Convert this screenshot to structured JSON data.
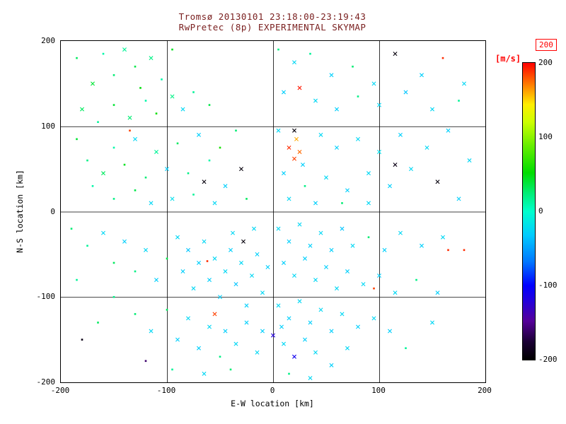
{
  "colors": {
    "title_text": "#7a2020",
    "unit_label": "#ff0000",
    "axis": "#000000",
    "background": "#ffffff"
  },
  "chart_data": {
    "type": "scatter",
    "title": "Tromsø 20130101 23:18:00-23:19:43",
    "subtitle": "RwPretec (8p) EXPERIMENTAL SKYMAP",
    "xlabel": "E-W location [km]",
    "ylabel": "N-S location [km]",
    "xlim": [
      -200,
      200
    ],
    "ylim": [
      -200,
      200
    ],
    "xticks": [
      -200,
      -100,
      0,
      100,
      200
    ],
    "yticks": [
      -200,
      -100,
      0,
      100,
      200
    ],
    "grid": true,
    "colorbar": {
      "label": "[m/s]",
      "boxed_max_label": "200",
      "ticks": [
        200,
        100,
        0,
        -100,
        -200
      ],
      "min": -200,
      "max": 200,
      "stops": [
        [
          0.0,
          "#000000"
        ],
        [
          0.06,
          "#1a0033"
        ],
        [
          0.13,
          "#550099"
        ],
        [
          0.2,
          "#2200dd"
        ],
        [
          0.25,
          "#0000ff"
        ],
        [
          0.33,
          "#0077ff"
        ],
        [
          0.42,
          "#00ccff"
        ],
        [
          0.5,
          "#00ffcc"
        ],
        [
          0.56,
          "#00ee77"
        ],
        [
          0.63,
          "#00dd00"
        ],
        [
          0.72,
          "#66ee00"
        ],
        [
          0.8,
          "#ccff00"
        ],
        [
          0.86,
          "#ffee00"
        ],
        [
          0.92,
          "#ff8800"
        ],
        [
          1.0,
          "#ff0000"
        ]
      ]
    },
    "point_format": [
      "x_km",
      "y_km",
      "velocity_ms",
      "marker(1=x,0=dot)"
    ],
    "points": [
      [
        -185,
        180,
        30,
        0
      ],
      [
        -170,
        150,
        40,
        1
      ],
      [
        -160,
        185,
        10,
        0
      ],
      [
        -150,
        160,
        25,
        0
      ],
      [
        -140,
        190,
        15,
        1
      ],
      [
        -130,
        170,
        35,
        0
      ],
      [
        -125,
        145,
        50,
        0
      ],
      [
        -115,
        180,
        20,
        1
      ],
      [
        -105,
        155,
        10,
        0
      ],
      [
        -95,
        190,
        45,
        0
      ],
      [
        -180,
        120,
        30,
        1
      ],
      [
        -165,
        105,
        15,
        0
      ],
      [
        -150,
        125,
        40,
        0
      ],
      [
        -135,
        110,
        25,
        1
      ],
      [
        -120,
        130,
        10,
        0
      ],
      [
        -110,
        115,
        55,
        0
      ],
      [
        -95,
        135,
        20,
        1
      ],
      [
        -85,
        120,
        -25,
        1
      ],
      [
        -75,
        140,
        15,
        0
      ],
      [
        -60,
        125,
        35,
        0
      ],
      [
        -175,
        60,
        20,
        0
      ],
      [
        -160,
        45,
        30,
        1
      ],
      [
        -150,
        75,
        10,
        0
      ],
      [
        -140,
        55,
        45,
        0
      ],
      [
        -130,
        85,
        -25,
        1
      ],
      [
        -120,
        40,
        25,
        0
      ],
      [
        -110,
        70,
        15,
        1
      ],
      [
        -100,
        50,
        -30,
        1
      ],
      [
        -90,
        80,
        30,
        0
      ],
      [
        -80,
        45,
        20,
        0
      ],
      [
        -70,
        90,
        -30,
        1
      ],
      [
        -60,
        60,
        10,
        0
      ],
      [
        -50,
        75,
        60,
        0
      ],
      [
        -45,
        30,
        -30,
        1
      ],
      [
        -35,
        95,
        25,
        0
      ],
      [
        -30,
        50,
        -195,
        1
      ],
      [
        -25,
        15,
        30,
        0
      ],
      [
        -55,
        10,
        -25,
        1
      ],
      [
        -75,
        20,
        15,
        0
      ],
      [
        -95,
        15,
        -20,
        1
      ],
      [
        -150,
        15,
        20,
        0
      ],
      [
        -130,
        25,
        35,
        0
      ],
      [
        -115,
        10,
        -25,
        1
      ],
      [
        -170,
        30,
        10,
        0
      ],
      [
        -185,
        85,
        40,
        0
      ],
      [
        -65,
        35,
        -195,
        1
      ],
      [
        -135,
        95,
        185,
        0
      ],
      [
        5,
        190,
        20,
        0
      ],
      [
        20,
        175,
        -25,
        1
      ],
      [
        35,
        185,
        15,
        0
      ],
      [
        55,
        160,
        -30,
        1
      ],
      [
        75,
        170,
        25,
        0
      ],
      [
        95,
        150,
        -25,
        1
      ],
      [
        115,
        185,
        -195,
        1
      ],
      [
        140,
        160,
        -30,
        1
      ],
      [
        160,
        180,
        190,
        0
      ],
      [
        180,
        150,
        -25,
        1
      ],
      [
        10,
        140,
        -30,
        1
      ],
      [
        25,
        145,
        195,
        1
      ],
      [
        40,
        130,
        -25,
        1
      ],
      [
        60,
        120,
        -30,
        1
      ],
      [
        80,
        135,
        20,
        0
      ],
      [
        100,
        125,
        -25,
        1
      ],
      [
        125,
        140,
        -35,
        1
      ],
      [
        150,
        120,
        -25,
        1
      ],
      [
        175,
        130,
        15,
        0
      ],
      [
        5,
        95,
        -25,
        1
      ],
      [
        15,
        75,
        190,
        1
      ],
      [
        20,
        62,
        185,
        1
      ],
      [
        25,
        70,
        175,
        1
      ],
      [
        28,
        55,
        -30,
        1
      ],
      [
        22,
        85,
        160,
        1
      ],
      [
        45,
        90,
        -25,
        1
      ],
      [
        60,
        75,
        -30,
        1
      ],
      [
        80,
        85,
        -25,
        1
      ],
      [
        100,
        70,
        -20,
        1
      ],
      [
        120,
        90,
        -30,
        1
      ],
      [
        145,
        75,
        -25,
        1
      ],
      [
        165,
        95,
        -30,
        1
      ],
      [
        185,
        60,
        -25,
        1
      ],
      [
        10,
        45,
        -30,
        1
      ],
      [
        30,
        30,
        20,
        0
      ],
      [
        50,
        40,
        -25,
        1
      ],
      [
        70,
        25,
        -30,
        1
      ],
      [
        90,
        45,
        -25,
        1
      ],
      [
        110,
        30,
        -30,
        1
      ],
      [
        130,
        50,
        -25,
        1
      ],
      [
        155,
        35,
        -195,
        1
      ],
      [
        175,
        15,
        -30,
        1
      ],
      [
        15,
        15,
        -25,
        1
      ],
      [
        40,
        10,
        -30,
        1
      ],
      [
        65,
        10,
        25,
        0
      ],
      [
        90,
        10,
        -25,
        1
      ],
      [
        20,
        95,
        -195,
        1
      ],
      [
        115,
        55,
        -190,
        1
      ],
      [
        -190,
        -20,
        25,
        0
      ],
      [
        -175,
        -40,
        15,
        0
      ],
      [
        -160,
        -25,
        -25,
        1
      ],
      [
        -150,
        -60,
        30,
        0
      ],
      [
        -140,
        -35,
        -30,
        1
      ],
      [
        -130,
        -70,
        20,
        0
      ],
      [
        -120,
        -45,
        -25,
        1
      ],
      [
        -110,
        -80,
        -30,
        1
      ],
      [
        -100,
        -55,
        35,
        0
      ],
      [
        -90,
        -30,
        -25,
        1
      ],
      [
        -85,
        -70,
        -30,
        1
      ],
      [
        -80,
        -45,
        -35,
        1
      ],
      [
        -75,
        -90,
        -25,
        1
      ],
      [
        -70,
        -60,
        -30,
        1
      ],
      [
        -65,
        -35,
        -25,
        1
      ],
      [
        -60,
        -80,
        -30,
        1
      ],
      [
        -55,
        -55,
        -25,
        1
      ],
      [
        -50,
        -100,
        -30,
        1
      ],
      [
        -45,
        -70,
        -25,
        1
      ],
      [
        -40,
        -45,
        -30,
        1
      ],
      [
        -35,
        -85,
        -35,
        1
      ],
      [
        -30,
        -60,
        -25,
        1
      ],
      [
        -25,
        -110,
        -30,
        1
      ],
      [
        -20,
        -75,
        -25,
        1
      ],
      [
        -15,
        -50,
        -30,
        1
      ],
      [
        -10,
        -95,
        -25,
        1
      ],
      [
        -5,
        -65,
        -30,
        1
      ],
      [
        -38,
        -25,
        -25,
        1
      ],
      [
        -28,
        -35,
        -195,
        1
      ],
      [
        -18,
        -20,
        -25,
        1
      ],
      [
        -130,
        -120,
        25,
        0
      ],
      [
        -115,
        -140,
        -25,
        1
      ],
      [
        -100,
        -115,
        30,
        0
      ],
      [
        -90,
        -150,
        -30,
        1
      ],
      [
        -80,
        -125,
        -25,
        1
      ],
      [
        -70,
        -160,
        -30,
        1
      ],
      [
        -60,
        -135,
        -25,
        1
      ],
      [
        -50,
        -170,
        20,
        0
      ],
      [
        -45,
        -140,
        -30,
        1
      ],
      [
        -35,
        -155,
        -25,
        1
      ],
      [
        -25,
        -130,
        -30,
        1
      ],
      [
        -15,
        -165,
        -25,
        1
      ],
      [
        -10,
        -140,
        -30,
        1
      ],
      [
        -120,
        -175,
        -160,
        0
      ],
      [
        -95,
        -185,
        15,
        0
      ],
      [
        -65,
        -190,
        -25,
        1
      ],
      [
        -40,
        -185,
        25,
        0
      ],
      [
        -150,
        -100,
        20,
        0
      ],
      [
        -165,
        -130,
        30,
        0
      ],
      [
        -185,
        -80,
        15,
        0
      ],
      [
        -62,
        -58,
        190,
        0
      ],
      [
        -55,
        -120,
        185,
        1
      ],
      [
        -180,
        -150,
        -190,
        0
      ],
      [
        5,
        -20,
        -25,
        1
      ],
      [
        15,
        -35,
        -30,
        1
      ],
      [
        25,
        -15,
        -25,
        1
      ],
      [
        35,
        -40,
        -30,
        1
      ],
      [
        45,
        -25,
        -25,
        1
      ],
      [
        55,
        -45,
        -30,
        1
      ],
      [
        65,
        -20,
        -35,
        1
      ],
      [
        75,
        -40,
        -25,
        1
      ],
      [
        90,
        -30,
        25,
        0
      ],
      [
        105,
        -45,
        -30,
        1
      ],
      [
        120,
        -25,
        -25,
        1
      ],
      [
        140,
        -40,
        -30,
        1
      ],
      [
        160,
        -30,
        -25,
        1
      ],
      [
        180,
        -45,
        190,
        0
      ],
      [
        10,
        -60,
        -30,
        1
      ],
      [
        20,
        -75,
        -25,
        1
      ],
      [
        30,
        -55,
        -30,
        1
      ],
      [
        40,
        -80,
        -25,
        1
      ],
      [
        50,
        -65,
        -30,
        1
      ],
      [
        60,
        -90,
        -25,
        1
      ],
      [
        70,
        -70,
        -30,
        1
      ],
      [
        85,
        -85,
        -25,
        1
      ],
      [
        100,
        -75,
        -30,
        1
      ],
      [
        115,
        -95,
        -25,
        1
      ],
      [
        135,
        -80,
        20,
        0
      ],
      [
        155,
        -95,
        -30,
        1
      ],
      [
        5,
        -110,
        -25,
        1
      ],
      [
        15,
        -125,
        -30,
        1
      ],
      [
        25,
        -105,
        -25,
        1
      ],
      [
        35,
        -130,
        -30,
        1
      ],
      [
        45,
        -115,
        -25,
        1
      ],
      [
        55,
        -140,
        -30,
        1
      ],
      [
        65,
        -120,
        -25,
        1
      ],
      [
        80,
        -135,
        -30,
        1
      ],
      [
        95,
        -90,
        185,
        0
      ],
      [
        95,
        -125,
        -25,
        1
      ],
      [
        110,
        -140,
        -30,
        1
      ],
      [
        10,
        -155,
        -25,
        1
      ],
      [
        20,
        -170,
        -110,
        1
      ],
      [
        30,
        -150,
        -30,
        1
      ],
      [
        40,
        -165,
        -25,
        1
      ],
      [
        55,
        -180,
        -30,
        1
      ],
      [
        70,
        -160,
        -25,
        1
      ],
      [
        15,
        -190,
        20,
        0
      ],
      [
        35,
        -195,
        -25,
        1
      ],
      [
        0,
        -145,
        -120,
        1
      ],
      [
        8,
        -135,
        -30,
        1
      ],
      [
        125,
        -160,
        15,
        0
      ],
      [
        150,
        -130,
        -25,
        1
      ],
      [
        165,
        -45,
        190,
        0
      ]
    ]
  }
}
